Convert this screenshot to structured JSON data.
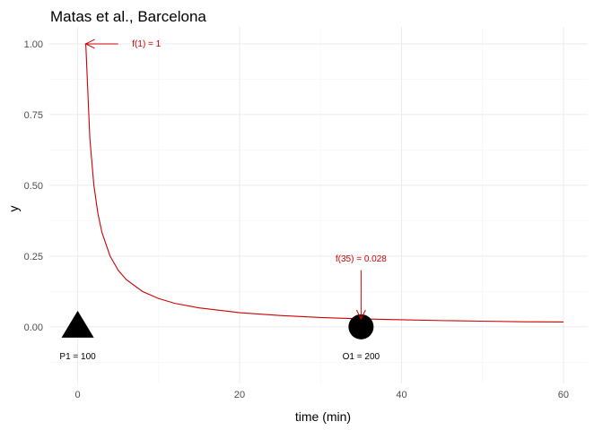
{
  "chart_data": {
    "type": "line",
    "title": "Matas et al., Barcelona",
    "xlabel": "time (min)",
    "ylabel": "y",
    "xlim": [
      -3.5,
      63
    ],
    "ylim": [
      -0.2,
      1.06
    ],
    "x_ticks": [
      0,
      20,
      40,
      60
    ],
    "x_tick_labels": [
      "0",
      "20",
      "40",
      "60"
    ],
    "y_ticks": [
      0,
      0.25,
      0.5,
      0.75,
      1
    ],
    "y_tick_labels": [
      "0.00",
      "0.25",
      "0.50",
      "0.75",
      "1.00"
    ],
    "grid": true,
    "series": [
      {
        "color": "#cc0000",
        "x": [
          0.9,
          1,
          1.5,
          2,
          2.5,
          3,
          4,
          5,
          6,
          8,
          10,
          12,
          15,
          20,
          25,
          30,
          35,
          40,
          45,
          50,
          55,
          60
        ],
        "y": [
          1.0,
          1.0,
          0.667,
          0.5,
          0.4,
          0.333,
          0.25,
          0.2,
          0.167,
          0.125,
          0.1,
          0.083,
          0.067,
          0.05,
          0.04,
          0.033,
          0.028,
          0.025,
          0.022,
          0.02,
          0.018,
          0.017
        ]
      }
    ],
    "markers": [
      {
        "shape": "triangle",
        "x": 0,
        "y": 0,
        "label": "P1 = 100",
        "color": "#000000"
      },
      {
        "shape": "circle",
        "x": 35,
        "y": 0,
        "label": "O1 = 200",
        "color": "#000000"
      }
    ],
    "annotations": [
      {
        "text": "f(1) = 1",
        "point": [
          1,
          1.0
        ],
        "text_at": [
          8.5,
          1.0
        ],
        "arrow_from": [
          5,
          1.0
        ],
        "color": "#cc0000"
      },
      {
        "text": "f(35) = 0.028",
        "point": [
          35,
          0.028
        ],
        "text_at": [
          35,
          0.24
        ],
        "arrow_from": [
          35,
          0.2
        ],
        "color": "#cc0000"
      }
    ]
  }
}
